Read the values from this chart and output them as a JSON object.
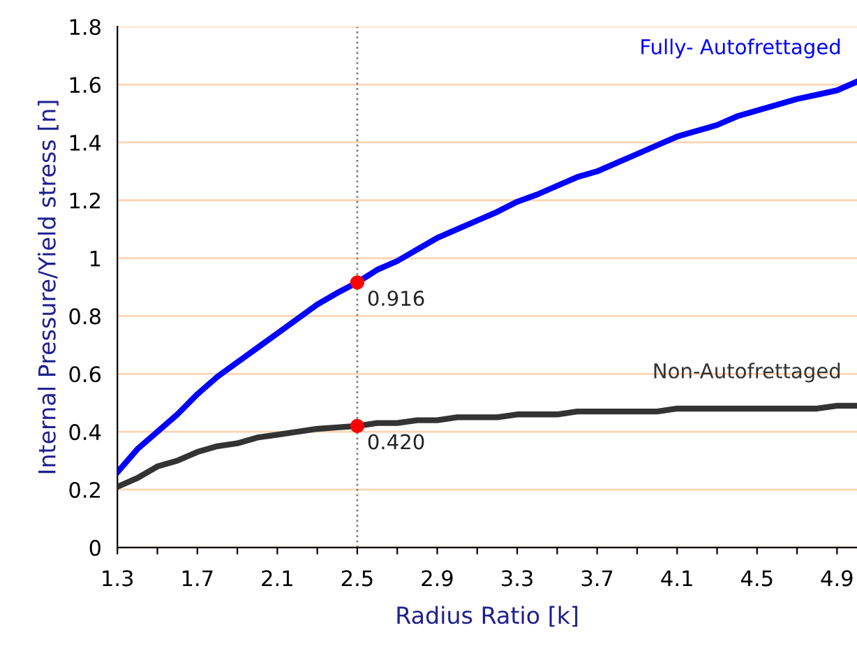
{
  "chart_data": {
    "type": "line",
    "xlabel": "Radius Ratio [k]",
    "ylabel": "Internal Pressure/Yield stress [n]",
    "x": [
      1.3,
      1.4,
      1.5,
      1.6,
      1.7,
      1.8,
      1.9,
      2.0,
      2.1,
      2.2,
      2.3,
      2.4,
      2.5,
      2.6,
      2.7,
      2.8,
      2.9,
      3.0,
      3.1,
      3.2,
      3.3,
      3.4,
      3.5,
      3.6,
      3.7,
      3.8,
      3.9,
      4.0,
      4.1,
      4.2,
      4.3,
      4.4,
      4.5,
      4.6,
      4.7,
      4.8,
      4.9,
      5.0
    ],
    "series": [
      {
        "name": "Fully- Autofrettaged",
        "color": "#0000ff",
        "values": [
          0.26,
          0.34,
          0.4,
          0.46,
          0.53,
          0.59,
          0.64,
          0.69,
          0.74,
          0.79,
          0.84,
          0.88,
          0.916,
          0.96,
          0.99,
          1.03,
          1.07,
          1.1,
          1.13,
          1.16,
          1.195,
          1.22,
          1.25,
          1.28,
          1.3,
          1.33,
          1.36,
          1.39,
          1.42,
          1.44,
          1.46,
          1.49,
          1.51,
          1.53,
          1.55,
          1.565,
          1.58,
          1.61
        ]
      },
      {
        "name": "Non-Autofrettaged",
        "color": "#333333",
        "values": [
          0.21,
          0.24,
          0.28,
          0.3,
          0.33,
          0.35,
          0.36,
          0.38,
          0.39,
          0.4,
          0.41,
          0.415,
          0.42,
          0.43,
          0.43,
          0.44,
          0.44,
          0.45,
          0.45,
          0.45,
          0.46,
          0.46,
          0.46,
          0.47,
          0.47,
          0.47,
          0.47,
          0.47,
          0.48,
          0.48,
          0.48,
          0.48,
          0.48,
          0.48,
          0.48,
          0.48,
          0.49,
          0.49
        ]
      },
      {
        "type": "scatter",
        "marker": "circle",
        "color": "#ff0000",
        "x": [
          2.5,
          2.5
        ],
        "values": [
          0.916,
          0.42
        ]
      }
    ],
    "annotations": [
      {
        "text": "0.916",
        "x": 2.5,
        "y": 0.916
      },
      {
        "text": "0.420",
        "x": 2.5,
        "y": 0.42
      }
    ],
    "ref_lines": [
      {
        "axis": "x",
        "value": 2.5,
        "color": "#808080",
        "line_style": "dotted"
      }
    ],
    "xlim": [
      1.3,
      5.0
    ],
    "ylim": [
      0,
      1.8
    ],
    "xticks": [
      1.3,
      {
        "value": 1.5,
        "label": null
      },
      1.7,
      {
        "value": 1.9,
        "label": null
      },
      2.1,
      {
        "value": 2.3,
        "label": null
      },
      2.5,
      {
        "value": 2.7,
        "label": null
      },
      2.9,
      {
        "value": 3.1,
        "label": null
      },
      3.3,
      {
        "value": 3.5,
        "label": null
      },
      3.7,
      {
        "value": 3.9,
        "label": null
      },
      4.1,
      {
        "value": 4.3,
        "label": null
      },
      4.5,
      {
        "value": 4.7,
        "label": null
      },
      4.9
    ],
    "yticks": [
      0,
      0.2,
      0.4,
      0.6,
      0.8,
      1,
      1.2,
      1.4,
      1.6,
      1.8
    ],
    "grid": "y",
    "legend": false,
    "marker": "none",
    "line_style": "solid"
  }
}
